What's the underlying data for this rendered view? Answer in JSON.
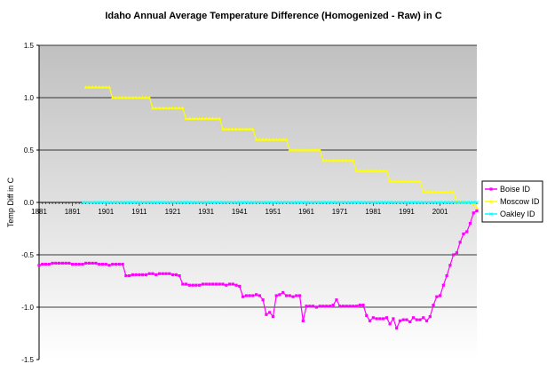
{
  "chart_data": {
    "type": "line",
    "title": "Idaho Annual Average Temperature Difference (Homogenized - Raw) in C",
    "xlabel": "",
    "ylabel": "Temp Diff in C",
    "xlim": [
      1881,
      2008
    ],
    "ylim": [
      -1.5,
      1.5
    ],
    "x_ticks": [
      "1881",
      "1891",
      "1901",
      "1911",
      "1921",
      "1931",
      "1941",
      "1951",
      "1961",
      "1971",
      "1981",
      "1991",
      "2001"
    ],
    "y_ticks": [
      "1.5",
      "1.0",
      "0.5",
      "0.0",
      "-0.5",
      "-1.0",
      "-1.5"
    ],
    "grid": "horizontal major gridlines",
    "legend_position": "right",
    "colors": {
      "plot_bg_top": "#c0c0c0",
      "plot_bg_bottom": "#ffffff",
      "boise": "#ff00ff",
      "moscow": "#ffff00",
      "oakley": "#00ffff"
    },
    "series": [
      {
        "name": "Boise ID",
        "color": "#ff00ff",
        "marker": "square",
        "points": [
          [
            1881,
            -0.6
          ],
          [
            1882,
            -0.59
          ],
          [
            1883,
            -0.59
          ],
          [
            1884,
            -0.59
          ],
          [
            1885,
            -0.58
          ],
          [
            1886,
            -0.58
          ],
          [
            1887,
            -0.58
          ],
          [
            1888,
            -0.58
          ],
          [
            1889,
            -0.58
          ],
          [
            1890,
            -0.58
          ],
          [
            1891,
            -0.59
          ],
          [
            1892,
            -0.59
          ],
          [
            1893,
            -0.59
          ],
          [
            1894,
            -0.59
          ],
          [
            1895,
            -0.58
          ],
          [
            1896,
            -0.58
          ],
          [
            1897,
            -0.58
          ],
          [
            1898,
            -0.58
          ],
          [
            1899,
            -0.59
          ],
          [
            1900,
            -0.59
          ],
          [
            1901,
            -0.59
          ],
          [
            1902,
            -0.6
          ],
          [
            1903,
            -0.59
          ],
          [
            1904,
            -0.59
          ],
          [
            1905,
            -0.59
          ],
          [
            1906,
            -0.59
          ],
          [
            1907,
            -0.7
          ],
          [
            1908,
            -0.7
          ],
          [
            1909,
            -0.69
          ],
          [
            1910,
            -0.69
          ],
          [
            1911,
            -0.69
          ],
          [
            1912,
            -0.69
          ],
          [
            1913,
            -0.69
          ],
          [
            1914,
            -0.68
          ],
          [
            1915,
            -0.68
          ],
          [
            1916,
            -0.69
          ],
          [
            1917,
            -0.68
          ],
          [
            1918,
            -0.68
          ],
          [
            1919,
            -0.68
          ],
          [
            1920,
            -0.68
          ],
          [
            1921,
            -0.69
          ],
          [
            1922,
            -0.69
          ],
          [
            1923,
            -0.7
          ],
          [
            1924,
            -0.78
          ],
          [
            1925,
            -0.78
          ],
          [
            1926,
            -0.79
          ],
          [
            1927,
            -0.79
          ],
          [
            1928,
            -0.79
          ],
          [
            1929,
            -0.79
          ],
          [
            1930,
            -0.78
          ],
          [
            1931,
            -0.78
          ],
          [
            1932,
            -0.78
          ],
          [
            1933,
            -0.78
          ],
          [
            1934,
            -0.78
          ],
          [
            1935,
            -0.78
          ],
          [
            1936,
            -0.78
          ],
          [
            1937,
            -0.79
          ],
          [
            1938,
            -0.78
          ],
          [
            1939,
            -0.78
          ],
          [
            1940,
            -0.79
          ],
          [
            1941,
            -0.8
          ],
          [
            1942,
            -0.9
          ],
          [
            1943,
            -0.89
          ],
          [
            1944,
            -0.89
          ],
          [
            1945,
            -0.89
          ],
          [
            1946,
            -0.88
          ],
          [
            1947,
            -0.89
          ],
          [
            1948,
            -0.93
          ],
          [
            1949,
            -1.07
          ],
          [
            1950,
            -1.05
          ],
          [
            1951,
            -1.09
          ],
          [
            1952,
            -0.89
          ],
          [
            1953,
            -0.88
          ],
          [
            1954,
            -0.86
          ],
          [
            1955,
            -0.89
          ],
          [
            1956,
            -0.89
          ],
          [
            1957,
            -0.9
          ],
          [
            1958,
            -0.89
          ],
          [
            1959,
            -0.89
          ],
          [
            1960,
            -1.13
          ],
          [
            1961,
            -0.99
          ],
          [
            1962,
            -0.99
          ],
          [
            1963,
            -0.99
          ],
          [
            1964,
            -1.0
          ],
          [
            1965,
            -0.99
          ],
          [
            1966,
            -0.99
          ],
          [
            1967,
            -0.99
          ],
          [
            1968,
            -0.99
          ],
          [
            1969,
            -0.98
          ],
          [
            1970,
            -0.93
          ],
          [
            1971,
            -0.99
          ],
          [
            1972,
            -0.99
          ],
          [
            1973,
            -0.99
          ],
          [
            1974,
            -0.99
          ],
          [
            1975,
            -0.99
          ],
          [
            1976,
            -0.99
          ],
          [
            1977,
            -0.98
          ],
          [
            1978,
            -0.98
          ],
          [
            1979,
            -1.08
          ],
          [
            1980,
            -1.13
          ],
          [
            1981,
            -1.1
          ],
          [
            1982,
            -1.11
          ],
          [
            1983,
            -1.11
          ],
          [
            1984,
            -1.11
          ],
          [
            1985,
            -1.1
          ],
          [
            1986,
            -1.16
          ],
          [
            1987,
            -1.11
          ],
          [
            1988,
            -1.2
          ],
          [
            1989,
            -1.13
          ],
          [
            1990,
            -1.12
          ],
          [
            1991,
            -1.12
          ],
          [
            1992,
            -1.14
          ],
          [
            1993,
            -1.1
          ],
          [
            1994,
            -1.12
          ],
          [
            1995,
            -1.12
          ],
          [
            1996,
            -1.1
          ],
          [
            1997,
            -1.13
          ],
          [
            1998,
            -1.09
          ],
          [
            1999,
            -0.98
          ],
          [
            2000,
            -0.9
          ],
          [
            2001,
            -0.89
          ],
          [
            2002,
            -0.79
          ],
          [
            2003,
            -0.7
          ],
          [
            2004,
            -0.6
          ],
          [
            2005,
            -0.5
          ],
          [
            2006,
            -0.48
          ],
          [
            2007,
            -0.38
          ],
          [
            2008,
            -0.3
          ],
          [
            2009,
            -0.28
          ],
          [
            2010,
            -0.2
          ],
          [
            2011,
            -0.1
          ],
          [
            2012,
            -0.08
          ]
        ]
      },
      {
        "name": "Moscow ID",
        "color": "#ffff00",
        "marker": "triangle",
        "points": [
          [
            1895,
            1.1
          ],
          [
            1896,
            1.1
          ],
          [
            1897,
            1.1
          ],
          [
            1898,
            1.1
          ],
          [
            1899,
            1.1
          ],
          [
            1900,
            1.1
          ],
          [
            1901,
            1.1
          ],
          [
            1902,
            1.1
          ],
          [
            1903,
            1.0
          ],
          [
            1904,
            1.0
          ],
          [
            1905,
            1.0
          ],
          [
            1906,
            1.0
          ],
          [
            1907,
            1.0
          ],
          [
            1908,
            1.0
          ],
          [
            1909,
            1.0
          ],
          [
            1910,
            1.0
          ],
          [
            1911,
            1.0
          ],
          [
            1912,
            1.0
          ],
          [
            1913,
            1.0
          ],
          [
            1914,
            1.0
          ],
          [
            1915,
            0.9
          ],
          [
            1916,
            0.9
          ],
          [
            1917,
            0.9
          ],
          [
            1918,
            0.9
          ],
          [
            1919,
            0.9
          ],
          [
            1920,
            0.9
          ],
          [
            1921,
            0.9
          ],
          [
            1922,
            0.9
          ],
          [
            1923,
            0.9
          ],
          [
            1924,
            0.9
          ],
          [
            1925,
            0.8
          ],
          [
            1926,
            0.8
          ],
          [
            1927,
            0.8
          ],
          [
            1928,
            0.8
          ],
          [
            1929,
            0.8
          ],
          [
            1930,
            0.8
          ],
          [
            1931,
            0.8
          ],
          [
            1932,
            0.8
          ],
          [
            1933,
            0.8
          ],
          [
            1934,
            0.8
          ],
          [
            1935,
            0.8
          ],
          [
            1936,
            0.7
          ],
          [
            1937,
            0.7
          ],
          [
            1938,
            0.7
          ],
          [
            1939,
            0.7
          ],
          [
            1940,
            0.7
          ],
          [
            1941,
            0.7
          ],
          [
            1942,
            0.7
          ],
          [
            1943,
            0.7
          ],
          [
            1944,
            0.7
          ],
          [
            1945,
            0.7
          ],
          [
            1946,
            0.6
          ],
          [
            1947,
            0.6
          ],
          [
            1948,
            0.6
          ],
          [
            1949,
            0.6
          ],
          [
            1950,
            0.6
          ],
          [
            1951,
            0.6
          ],
          [
            1952,
            0.6
          ],
          [
            1953,
            0.6
          ],
          [
            1954,
            0.6
          ],
          [
            1955,
            0.6
          ],
          [
            1956,
            0.5
          ],
          [
            1957,
            0.5
          ],
          [
            1958,
            0.5
          ],
          [
            1959,
            0.5
          ],
          [
            1960,
            0.5
          ],
          [
            1961,
            0.5
          ],
          [
            1962,
            0.5
          ],
          [
            1963,
            0.5
          ],
          [
            1964,
            0.5
          ],
          [
            1965,
            0.5
          ],
          [
            1966,
            0.4
          ],
          [
            1967,
            0.4
          ],
          [
            1968,
            0.4
          ],
          [
            1969,
            0.4
          ],
          [
            1970,
            0.4
          ],
          [
            1971,
            0.4
          ],
          [
            1972,
            0.4
          ],
          [
            1973,
            0.4
          ],
          [
            1974,
            0.4
          ],
          [
            1975,
            0.4
          ],
          [
            1976,
            0.3
          ],
          [
            1977,
            0.3
          ],
          [
            1978,
            0.3
          ],
          [
            1979,
            0.3
          ],
          [
            1980,
            0.3
          ],
          [
            1981,
            0.3
          ],
          [
            1982,
            0.3
          ],
          [
            1983,
            0.3
          ],
          [
            1984,
            0.3
          ],
          [
            1985,
            0.3
          ],
          [
            1986,
            0.2
          ],
          [
            1987,
            0.2
          ],
          [
            1988,
            0.2
          ],
          [
            1989,
            0.2
          ],
          [
            1990,
            0.2
          ],
          [
            1991,
            0.2
          ],
          [
            1992,
            0.2
          ],
          [
            1993,
            0.2
          ],
          [
            1994,
            0.2
          ],
          [
            1995,
            0.2
          ],
          [
            1996,
            0.1
          ],
          [
            1997,
            0.1
          ],
          [
            1998,
            0.1
          ],
          [
            1999,
            0.1
          ],
          [
            2000,
            0.1
          ],
          [
            2001,
            0.1
          ],
          [
            2002,
            0.1
          ],
          [
            2003,
            0.1
          ],
          [
            2004,
            0.1
          ],
          [
            2005,
            0.1
          ],
          [
            2006,
            0.0
          ],
          [
            2007,
            0.0
          ],
          [
            2008,
            0.0
          ],
          [
            2009,
            0.0
          ],
          [
            2010,
            0.0
          ],
          [
            2011,
            -0.02
          ],
          [
            2012,
            -0.05
          ]
        ]
      },
      {
        "name": "Oakley ID",
        "color": "#00ffff",
        "marker": "x",
        "points": "constant 0.0 from 1894 to 2012",
        "x_start": 1894,
        "x_end": 2012,
        "value": 0.0
      }
    ]
  }
}
